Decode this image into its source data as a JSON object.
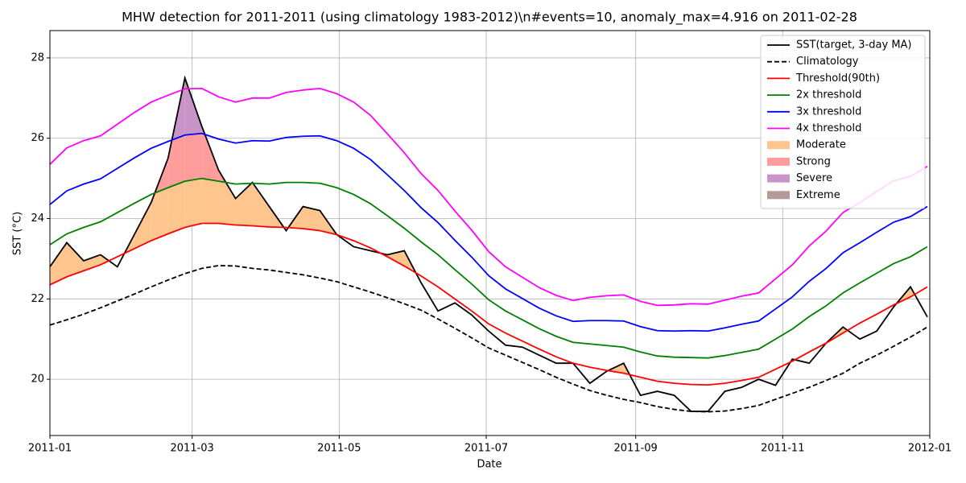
{
  "chart_data": {
    "type": "line",
    "title": "MHW detection for 2011-2011 (using climatology 1983-2012)\\n#events=10, anomaly_max=4.916 on 2011-02-28",
    "xlabel": "Date",
    "ylabel": "SST (°C)",
    "x": [
      0,
      7,
      14,
      21,
      28,
      35,
      42,
      49,
      56,
      63,
      70,
      77,
      84,
      91,
      98,
      105,
      112,
      119,
      126,
      133,
      140,
      147,
      154,
      161,
      168,
      175,
      182,
      189,
      196,
      203,
      210,
      217,
      224,
      231,
      238,
      245,
      252,
      259,
      266,
      273,
      280,
      287,
      294,
      301,
      308,
      315,
      322,
      329,
      336,
      343,
      350,
      357,
      364
    ],
    "xlim": [
      0,
      365
    ],
    "xticks": [
      {
        "value": 0,
        "label": "2011-01"
      },
      {
        "value": 59,
        "label": "2011-03"
      },
      {
        "value": 120,
        "label": "2011-05"
      },
      {
        "value": 181,
        "label": "2011-07"
      },
      {
        "value": 243,
        "label": "2011-09"
      },
      {
        "value": 304,
        "label": "2011-11"
      },
      {
        "value": 365,
        "label": "2012-01"
      }
    ],
    "ylim": [
      18.6,
      28.68
    ],
    "yticks": [
      20,
      22,
      24,
      26,
      28
    ],
    "grid": true,
    "legend": "upper right",
    "series": [
      {
        "name": "SST(target, 3-day MA)",
        "color": "#000000",
        "style": "solid",
        "values": [
          22.8,
          23.4,
          22.95,
          23.1,
          22.8,
          23.6,
          24.4,
          25.5,
          27.5,
          26.3,
          25.2,
          24.5,
          24.9,
          24.3,
          23.7,
          24.3,
          24.2,
          23.6,
          23.3,
          23.2,
          23.1,
          23.2,
          22.4,
          21.7,
          21.9,
          21.6,
          21.2,
          20.85,
          20.8,
          20.6,
          20.4,
          20.4,
          19.9,
          20.2,
          20.4,
          19.6,
          19.7,
          19.6,
          19.2,
          19.2,
          19.7,
          19.8,
          20.0,
          19.85,
          20.5,
          20.4,
          20.9,
          21.3,
          21.0,
          21.2,
          21.8,
          22.3,
          21.55
        ]
      },
      {
        "name": "Climatology",
        "color": "#000000",
        "style": "dashed",
        "values": [
          21.35,
          21.48,
          21.62,
          21.78,
          21.95,
          22.12,
          22.3,
          22.47,
          22.63,
          22.76,
          22.83,
          22.82,
          22.76,
          22.72,
          22.66,
          22.6,
          22.52,
          22.43,
          22.3,
          22.17,
          22.03,
          21.88,
          21.72,
          21.5,
          21.27,
          21.03,
          20.78,
          20.6,
          20.42,
          20.24,
          20.05,
          19.88,
          19.72,
          19.6,
          19.5,
          19.42,
          19.32,
          19.25,
          19.2,
          19.19,
          19.21,
          19.27,
          19.35,
          19.5,
          19.65,
          19.8,
          19.97,
          20.15,
          20.4,
          20.6,
          20.82,
          21.05,
          21.3
        ]
      },
      {
        "name": "Threshold(90th)",
        "color": "#ff0000",
        "style": "solid",
        "values": [
          22.35,
          22.55,
          22.7,
          22.85,
          23.05,
          23.25,
          23.45,
          23.62,
          23.78,
          23.88,
          23.88,
          23.84,
          23.82,
          23.79,
          23.78,
          23.75,
          23.7,
          23.6,
          23.45,
          23.27,
          23.05,
          22.82,
          22.57,
          22.3,
          22.0,
          21.7,
          21.38,
          21.15,
          20.95,
          20.75,
          20.56,
          20.4,
          20.3,
          20.22,
          20.15,
          20.05,
          19.95,
          19.9,
          19.87,
          19.86,
          19.9,
          19.97,
          20.05,
          20.25,
          20.45,
          20.68,
          20.9,
          21.15,
          21.4,
          21.62,
          21.85,
          22.05,
          22.3
        ]
      },
      {
        "name": "2x threshold",
        "color": "#008000",
        "style": "solid",
        "values": [
          23.35,
          23.62,
          23.78,
          23.92,
          24.15,
          24.38,
          24.6,
          24.77,
          24.93,
          25.0,
          24.93,
          24.86,
          24.88,
          24.86,
          24.9,
          24.9,
          24.88,
          24.77,
          24.6,
          24.37,
          24.07,
          23.76,
          23.42,
          23.1,
          22.73,
          22.37,
          21.98,
          21.7,
          21.48,
          21.26,
          21.07,
          20.92,
          20.88,
          20.84,
          20.8,
          20.68,
          20.58,
          20.55,
          20.54,
          20.53,
          20.59,
          20.67,
          20.75,
          21.0,
          21.25,
          21.56,
          21.83,
          22.15,
          22.4,
          22.64,
          22.88,
          23.05,
          23.3
        ]
      },
      {
        "name": "3x threshold",
        "color": "#0000ff",
        "style": "solid",
        "values": [
          24.35,
          24.69,
          24.86,
          24.99,
          25.25,
          25.51,
          25.75,
          25.92,
          26.08,
          26.12,
          25.98,
          25.88,
          25.94,
          25.93,
          26.02,
          26.05,
          26.06,
          25.94,
          25.75,
          25.47,
          25.09,
          24.7,
          24.27,
          23.9,
          23.46,
          23.04,
          22.58,
          22.25,
          22.01,
          21.77,
          21.58,
          21.44,
          21.46,
          21.46,
          21.45,
          21.31,
          21.21,
          21.2,
          21.21,
          21.2,
          21.28,
          21.37,
          21.45,
          21.75,
          22.05,
          22.44,
          22.76,
          23.15,
          23.4,
          23.66,
          23.91,
          24.05,
          24.3
        ]
      },
      {
        "name": "4x threshold",
        "color": "#ff00ff",
        "style": "solid",
        "values": [
          25.35,
          25.76,
          25.94,
          26.06,
          26.35,
          26.64,
          26.9,
          27.07,
          27.23,
          27.24,
          27.03,
          26.9,
          27.0,
          27.0,
          27.14,
          27.2,
          27.24,
          27.11,
          26.9,
          26.57,
          26.11,
          25.64,
          25.12,
          24.7,
          24.19,
          23.71,
          23.18,
          22.8,
          22.54,
          22.28,
          22.09,
          21.96,
          22.04,
          22.08,
          22.1,
          21.94,
          21.84,
          21.85,
          21.88,
          21.87,
          21.97,
          22.07,
          22.15,
          22.5,
          22.85,
          23.32,
          23.69,
          24.15,
          24.4,
          24.68,
          24.94,
          25.05,
          25.3
        ]
      }
    ],
    "event_categories": [
      {
        "name": "Moderate",
        "color": "#ffc58f"
      },
      {
        "name": "Strong",
        "color": "#ff9c9c"
      },
      {
        "name": "Severe",
        "color": "#c994c7"
      },
      {
        "name": "Extreme",
        "color": "#b39b97"
      }
    ]
  }
}
